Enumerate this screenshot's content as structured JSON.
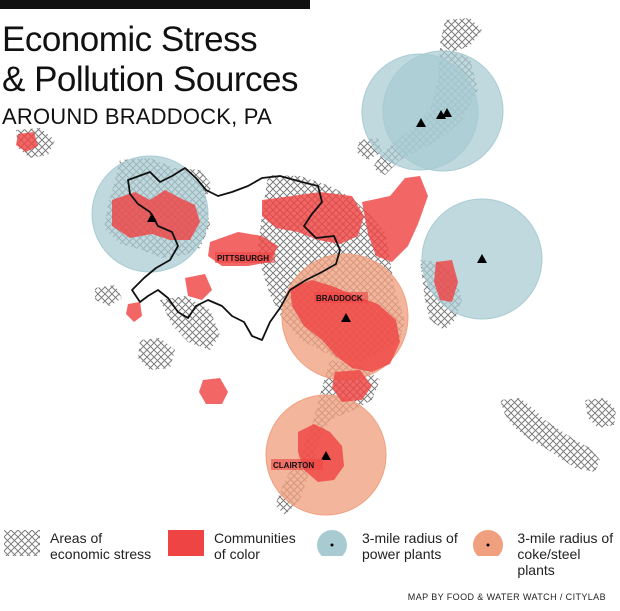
{
  "title": "Economic Stress\n& Pollution Sources",
  "subtitle": "AROUND BRADDOCK, PA",
  "labels": {
    "pittsburgh": "PITTSBURGH",
    "braddock": "BRADDOCK",
    "clairton": "CLAIRTON"
  },
  "legend": {
    "stress": "Areas of\neconomic stress",
    "color": "Communities\nof color",
    "power": "3-mile radius of\npower plants",
    "coke": "3-mile radius of\ncoke/steel plants"
  },
  "credit": "MAP BY FOOD & WATER WATCH / CITYLAB",
  "colors": {
    "communities": "#ef4444",
    "power_radius": "#a8cbd2",
    "coke_radius": "#f0a07f",
    "hatch": "#8a8a8a",
    "boundary": "#111111"
  }
}
